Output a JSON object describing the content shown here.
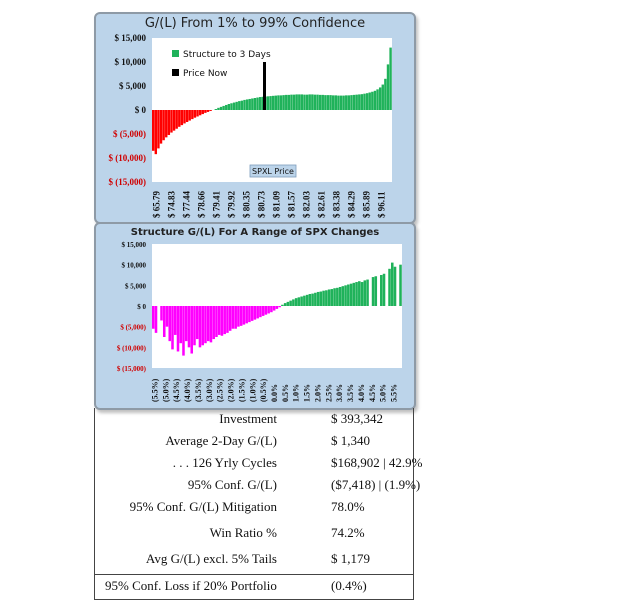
{
  "chart1": {
    "title": "G/(L) From 1% to 99% Confidence",
    "xaxis_label": "SPXL Price",
    "legend": [
      {
        "label": "Structure to 3 Days",
        "color": "#1fb25a"
      },
      {
        "label": "Price Now",
        "color": "#000000"
      }
    ]
  },
  "chart2": {
    "title": "Structure G/(L) For A Range of SPX Changes"
  },
  "chart_data": [
    {
      "type": "bar",
      "title": "G/(L) From 1% to 99% Confidence",
      "xlabel": "SPXL Price",
      "ylabel": "",
      "ylim": [
        -15000,
        15000
      ],
      "yticks": [
        -15000,
        -10000,
        -5000,
        0,
        5000,
        10000,
        15000
      ],
      "ytick_labels": [
        "$ (15,000)",
        "$ (10,000)",
        "$ (5,000)",
        "$ 0",
        "$ 5,000",
        "$ 10,000",
        "$ 15,000"
      ],
      "xtick_labels": [
        "$ 65.79",
        "$ 74.83",
        "$ 77.44",
        "$ 78.66",
        "$ 79.41",
        "$ 79.92",
        "$ 80.35",
        "$ 80.73",
        "$ 81.09",
        "$ 81.57",
        "$ 82.03",
        "$ 82.61",
        "$ 83.38",
        "$ 84.29",
        "$ 85.89",
        "$ 96.11"
      ],
      "colors": {
        "loss": "#ff0000",
        "gain": "#1fb25a",
        "price_now": "#000000"
      },
      "price_now_marker": {
        "at_label": "$ 80.73",
        "value": 10000
      },
      "series": [
        {
          "name": "Structure to 3 Days",
          "values": [
            -8500,
            -9200,
            -8000,
            -7000,
            -6300,
            -5700,
            -5200,
            -4700,
            -4300,
            -3900,
            -3500,
            -3150,
            -2800,
            -2500,
            -2200,
            -1900,
            -1600,
            -1350,
            -1100,
            -850,
            -600,
            -400,
            -200,
            0,
            200,
            450,
            650,
            850,
            1050,
            1250,
            1400,
            1550,
            1700,
            1850,
            1950,
            2100,
            2200,
            2300,
            2400,
            2500,
            2600,
            2700,
            2750,
            2800,
            2850,
            2900,
            2950,
            3000,
            3050,
            3050,
            3100,
            3150,
            3150,
            3200,
            3200,
            3250,
            3250,
            3250,
            3200,
            3200,
            3250,
            3250,
            3200,
            3200,
            3150,
            3150,
            3100,
            3100,
            3100,
            3050,
            3050,
            3000,
            3000,
            3000,
            3050,
            3050,
            3100,
            3150,
            3200,
            3250,
            3300,
            3400,
            3500,
            3650,
            3800,
            4000,
            4300,
            4700,
            5300,
            6500,
            9500,
            13000
          ]
        }
      ]
    },
    {
      "type": "bar",
      "title": "Structure G/(L) For A Range of SPX Changes",
      "xlabel": "",
      "ylabel": "",
      "ylim": [
        -15000,
        15000
      ],
      "yticks": [
        -15000,
        -10000,
        -5000,
        0,
        5000,
        10000,
        15000
      ],
      "ytick_labels": [
        "$ (15,000)",
        "$ (10,000)",
        "$ (5,000)",
        "$ 0",
        "$ 5,000",
        "$ 10,000",
        "$ 15,000"
      ],
      "xtick_labels": [
        "(5.5%)",
        "(5.0%)",
        "(4.5%)",
        "(4.0%)",
        "(3.5%)",
        "(3.0%)",
        "(2.5%)",
        "(2.0%)",
        "(1.5%)",
        "(1.0%)",
        "(0.5%)",
        "0.0%",
        "0.5%",
        "1.0%",
        "1.5%",
        "2.0%",
        "2.5%",
        "3.0%",
        "3.5%",
        "4.0%",
        "4.5%",
        "5.0%",
        "5.5%"
      ],
      "colors": {
        "loss": "#ff00ff",
        "gain": "#1fb25a"
      },
      "series": [
        {
          "name": "Structure G/(L)",
          "values": [
            -5500,
            -6500,
            0,
            -3500,
            -7500,
            -5000,
            -8500,
            -10500,
            -7000,
            -11000,
            -9000,
            -12000,
            -8500,
            -10000,
            -11500,
            -9500,
            -8000,
            -10000,
            -9500,
            -9000,
            -8500,
            -8800,
            -8000,
            -7500,
            -7000,
            -7200,
            -6800,
            -6500,
            -6000,
            -5500,
            -5500,
            -5000,
            -4800,
            -4500,
            -4200,
            -3900,
            -3600,
            -3300,
            -3000,
            -2700,
            -2400,
            -2100,
            -1800,
            -1500,
            -1100,
            -700,
            -300,
            300,
            700,
            1000,
            1300,
            1600,
            1900,
            2100,
            2300,
            2500,
            2700,
            2900,
            3000,
            3200,
            3400,
            3500,
            3700,
            3800,
            4000,
            4100,
            4300,
            4400,
            4600,
            4800,
            5000,
            5200,
            5400,
            5600,
            5800,
            6000,
            5800,
            6200,
            6400,
            0,
            7000,
            7200,
            0,
            7500,
            7800,
            0,
            9000,
            10500,
            9500,
            0,
            10000
          ]
        }
      ]
    }
  ],
  "stats": [
    {
      "label": "Investment",
      "value": "$  393,342"
    },
    {
      "label": "Average 2-Day G/(L)",
      "value": "$   1,340"
    },
    {
      "label": ". . . 126 Yrly Cycles",
      "value": "$168,902  | 42.9%"
    },
    {
      "label": "95% Conf.  G/(L)",
      "value": "($7,418) | (1.9%)"
    },
    {
      "label": "95% Conf.  G/(L) Mitigation",
      "value": "78.0%"
    },
    {
      "label": "Win Ratio %",
      "value": "74.2%"
    },
    {
      "label": "Avg G/(L) excl. 5% Tails",
      "value": "$   1,179"
    }
  ],
  "footer_stat": {
    "label": "95% Conf. Loss if 20% Portfolio",
    "value": "(0.4%)"
  }
}
